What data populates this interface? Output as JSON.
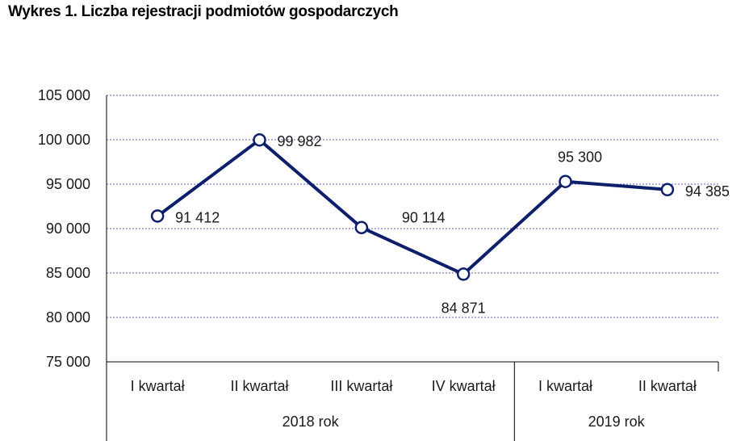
{
  "chart_data": {
    "type": "line",
    "title": "Wykres 1. Liczba rejestracji podmiotów gospodarczych",
    "categories": [
      "I kwartał",
      "II kwartał",
      "III kwartał",
      "IV kwartał",
      "I kwartał",
      "II kwartał"
    ],
    "groups": [
      {
        "label": "2018 rok",
        "count": 4
      },
      {
        "label": "2019 rok",
        "count": 2
      }
    ],
    "values": [
      91412,
      99982,
      90114,
      84871,
      95300,
      94385
    ],
    "data_labels": [
      "91 412",
      "99 982",
      "90 114",
      "84 871",
      "95 300",
      "94 385"
    ],
    "yticks": [
      "75 000",
      "80 000",
      "85 000",
      "90 000",
      "95 000",
      "100 000",
      "105 000"
    ],
    "ytick_values": [
      75000,
      80000,
      85000,
      90000,
      95000,
      100000,
      105000
    ],
    "ylim": [
      75000,
      105000
    ],
    "grid": true,
    "line_color": "#0d1f6b",
    "grid_color": "#8080c8"
  }
}
